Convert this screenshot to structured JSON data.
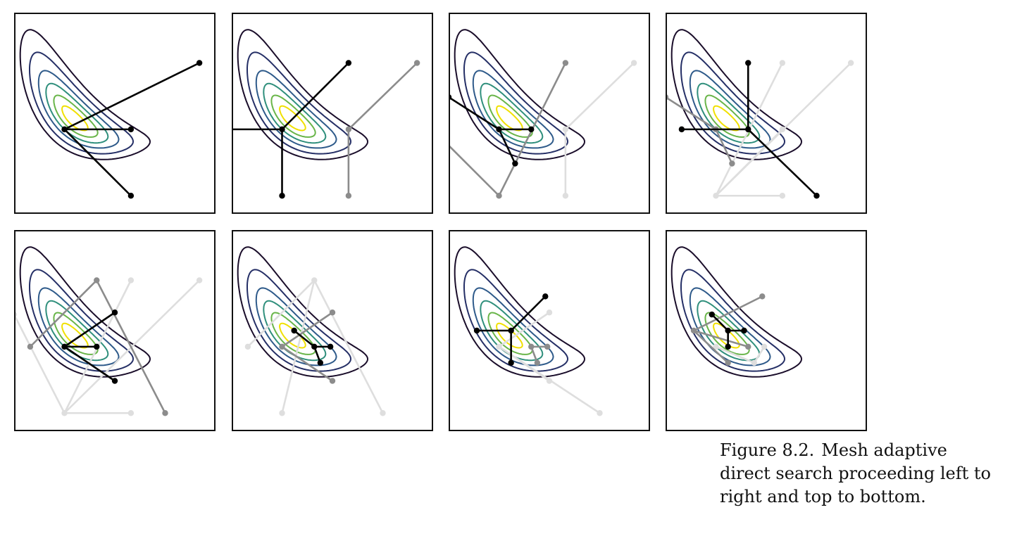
{
  "figure": {
    "caption_label": "Figure 8.2.",
    "caption_text": "Mesh adaptive direct search proceeding left to right and top to bottom."
  },
  "contour_colors": [
    "#f0e000",
    "#69b549",
    "#2f8f7c",
    "#2e5a8a",
    "#252f66",
    "#1a0d2a"
  ],
  "step_colors": {
    "current": "#000000",
    "previous": "#8c8c8c",
    "older": "#dedede"
  },
  "panels": [
    {
      "current": [
        [
          0.25,
          0.42
        ],
        [
          0.58,
          0.42
        ],
        [
          0.58,
          0.09
        ],
        [
          0.92,
          0.75
        ]
      ],
      "previous": [],
      "older": []
    },
    {
      "current": [
        [
          0.25,
          0.42
        ],
        [
          0.25,
          0.09
        ],
        [
          0.58,
          0.75
        ],
        [
          -0.08,
          0.42
        ]
      ],
      "previous": [
        [
          0.58,
          0.42
        ],
        [
          0.58,
          0.09
        ],
        [
          0.92,
          0.75
        ]
      ],
      "older": []
    },
    {
      "current": [
        [
          0.25,
          0.42
        ],
        [
          0.41,
          0.42
        ],
        [
          0.33,
          0.25
        ],
        [
          0.0,
          0.58
        ]
      ],
      "previous": [
        [
          0.25,
          0.09
        ],
        [
          0.58,
          0.75
        ],
        [
          -0.08,
          0.42
        ]
      ],
      "older": [
        [
          0.58,
          0.42
        ],
        [
          0.58,
          0.09
        ],
        [
          0.92,
          0.75
        ]
      ]
    },
    {
      "current": [
        [
          0.41,
          0.42
        ],
        [
          0.41,
          0.75
        ],
        [
          0.75,
          0.09
        ],
        [
          0.08,
          0.42
        ]
      ],
      "previous": [
        [
          0.25,
          0.42
        ],
        [
          0.33,
          0.25
        ],
        [
          0.0,
          0.58
        ]
      ],
      "older": [
        [
          0.25,
          0.09
        ],
        [
          0.58,
          0.75
        ],
        [
          0.58,
          0.42
        ],
        [
          0.92,
          0.75
        ],
        [
          0.58,
          0.09
        ]
      ]
    },
    {
      "current": [
        [
          0.25,
          0.42
        ],
        [
          0.41,
          0.42
        ],
        [
          0.5,
          0.59
        ],
        [
          0.5,
          0.25
        ]
      ],
      "previous": [
        [
          0.41,
          0.75
        ],
        [
          0.75,
          0.09
        ],
        [
          0.08,
          0.42
        ]
      ],
      "older": [
        [
          0.25,
          0.09
        ],
        [
          0.58,
          0.09
        ],
        [
          0.58,
          0.75
        ],
        [
          0.92,
          0.75
        ],
        [
          0.0,
          0.58
        ]
      ]
    },
    {
      "current": [
        [
          0.41,
          0.42
        ],
        [
          0.31,
          0.5
        ],
        [
          0.49,
          0.42
        ],
        [
          0.44,
          0.34
        ]
      ],
      "previous": [
        [
          0.25,
          0.42
        ],
        [
          0.5,
          0.59
        ],
        [
          0.5,
          0.25
        ]
      ],
      "older": [
        [
          0.41,
          0.75
        ],
        [
          0.75,
          0.09
        ],
        [
          0.08,
          0.42
        ],
        [
          0.25,
          0.09
        ]
      ]
    },
    {
      "current": [
        [
          0.31,
          0.5
        ],
        [
          0.14,
          0.5
        ],
        [
          0.31,
          0.34
        ],
        [
          0.48,
          0.67
        ]
      ],
      "previous": [
        [
          0.41,
          0.42
        ],
        [
          0.49,
          0.42
        ],
        [
          0.44,
          0.34
        ]
      ],
      "older": [
        [
          0.25,
          0.42
        ],
        [
          0.5,
          0.59
        ],
        [
          0.5,
          0.25
        ],
        [
          0.75,
          0.09
        ]
      ]
    },
    {
      "current": [
        [
          0.31,
          0.5
        ],
        [
          0.23,
          0.58
        ],
        [
          0.39,
          0.5
        ],
        [
          0.31,
          0.42
        ]
      ],
      "previous": [
        [
          0.14,
          0.5
        ],
        [
          0.31,
          0.34
        ],
        [
          0.48,
          0.67
        ],
        [
          0.41,
          0.42
        ]
      ],
      "older": [
        [
          0.44,
          0.34
        ],
        [
          0.49,
          0.42
        ],
        [
          0.25,
          0.42
        ]
      ]
    }
  ]
}
